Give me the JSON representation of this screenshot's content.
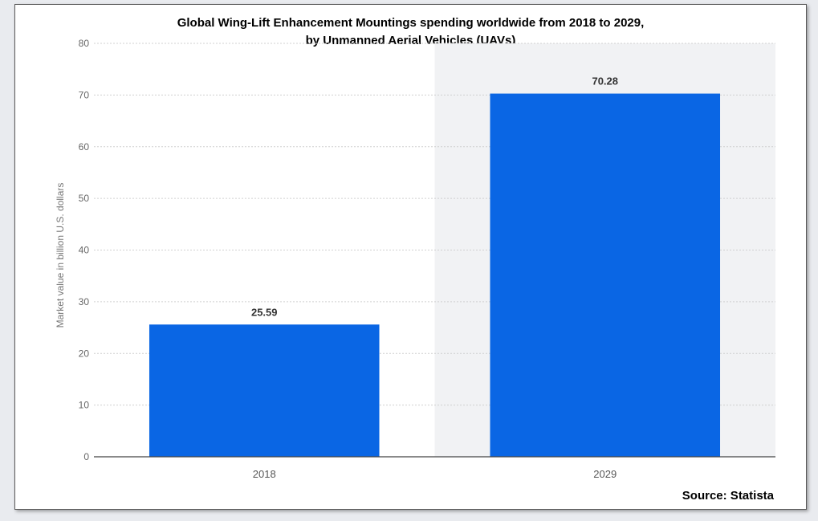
{
  "chart_data": {
    "type": "bar",
    "title_lines": [
      "Global Wing-Lift Enhancement Mountings spending worldwide from 2018 to 2029,",
      "by Unmanned Aerial Vehicles (UAVs)"
    ],
    "categories": [
      "2018",
      "2029"
    ],
    "values": [
      25.59,
      70.28
    ],
    "value_labels": [
      "25.59",
      "70.28"
    ],
    "xlabel": "",
    "ylabel": "Market value in billion U.S. dollars",
    "ylim": [
      0,
      80
    ],
    "yticks": [
      "0",
      "10",
      "20",
      "30",
      "40",
      "50",
      "60",
      "70",
      "80"
    ],
    "grid": true,
    "bar_color": "#0a66e4",
    "highlight_band_color": "#f1f2f4",
    "source": "Source: Statista"
  }
}
